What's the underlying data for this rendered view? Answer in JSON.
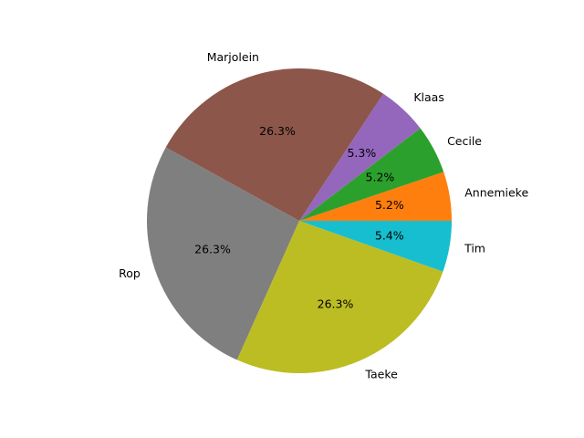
{
  "chart_data": {
    "type": "pie",
    "start_angle": 0,
    "direction": "counterclockwise",
    "slices": [
      {
        "label": "Annemieke",
        "value": 5.2,
        "pct_label": "5.2%",
        "color": "#ff7f0e"
      },
      {
        "label": "Cecile",
        "value": 5.2,
        "pct_label": "5.2%",
        "color": "#2ca02c"
      },
      {
        "label": "Klaas",
        "value": 5.3,
        "pct_label": "5.3%",
        "color": "#9467bd"
      },
      {
        "label": "Marjolein",
        "value": 26.3,
        "pct_label": "26.3%",
        "color": "#8c564b"
      },
      {
        "label": "Rop",
        "value": 26.3,
        "pct_label": "26.3%",
        "color": "#7f7f7f"
      },
      {
        "label": "Taeke",
        "value": 26.3,
        "pct_label": "26.3%",
        "color": "#bcbd22"
      },
      {
        "label": "Tim",
        "value": 5.4,
        "pct_label": "5.4%",
        "color": "#17becf"
      }
    ]
  }
}
